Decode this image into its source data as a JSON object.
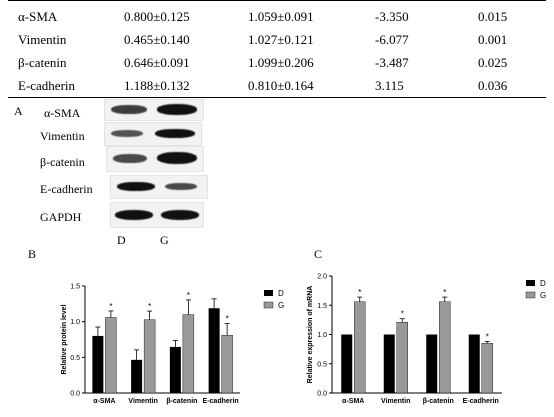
{
  "table": {
    "rows": [
      {
        "name": "α-SMA",
        "d": "0.800±0.125",
        "g": "1.059±0.091",
        "t": "-3.350",
        "p": "0.015"
      },
      {
        "name": "Vimentin",
        "d": "0.465±0.140",
        "g": "1.027±0.121",
        "t": "-6.077",
        "p": "0.001"
      },
      {
        "name": "β-catenin",
        "d": "0.646±0.091",
        "g": "1.099±0.206",
        "t": "-3.487",
        "p": "0.025"
      },
      {
        "name": "E-cadherin",
        "d": "1.188±0.132",
        "g": "0.810±0.164",
        "t": "3.115",
        "p": "0.036"
      }
    ]
  },
  "panel_a": {
    "letter": "A",
    "proteins": [
      "α-SMA",
      "Vimentin",
      "β-catenin",
      "E-cadherin",
      "GAPDH"
    ],
    "lanes": [
      "D",
      "G"
    ]
  },
  "chart_data": [
    {
      "type": "bar",
      "panel": "B",
      "categories": [
        "α-SMA",
        "Vimentin",
        "β-catenin",
        "E-cadherin"
      ],
      "ylabel": "Relative protein level",
      "ylim": [
        0,
        1.5
      ],
      "yticks": [
        "0.0",
        "0.5",
        "1.0",
        "1.5"
      ],
      "legend_position": "right",
      "series": [
        {
          "name": "D",
          "color": "#000000",
          "values": [
            0.8,
            0.465,
            0.646,
            1.188
          ],
          "errors": [
            0.125,
            0.14,
            0.091,
            0.132
          ]
        },
        {
          "name": "G",
          "color": "#999999",
          "values": [
            1.059,
            1.027,
            1.099,
            0.81
          ],
          "errors": [
            0.091,
            0.121,
            0.206,
            0.164
          ]
        }
      ],
      "annotations": [
        "*",
        "*",
        "*",
        "*"
      ]
    },
    {
      "type": "bar",
      "panel": "C",
      "categories": [
        "α-SMA",
        "Vimentin",
        "β-catenin",
        "E-cadherin"
      ],
      "ylabel": "Relative expression of mRNA",
      "ylim": [
        0,
        2.0
      ],
      "yticks": [
        "0.0",
        "0.5",
        "1.0",
        "1.5",
        "2.0"
      ],
      "legend_position": "right",
      "series": [
        {
          "name": "D",
          "color": "#000000",
          "values": [
            1.0,
            1.0,
            1.0,
            1.0
          ],
          "errors": [
            0,
            0,
            0,
            0
          ]
        },
        {
          "name": "G",
          "color": "#999999",
          "values": [
            1.56,
            1.21,
            1.56,
            0.85
          ],
          "errors": [
            0.08,
            0.06,
            0.08,
            0.03
          ]
        }
      ],
      "annotations": [
        "*",
        "*",
        "*",
        "*"
      ]
    }
  ]
}
